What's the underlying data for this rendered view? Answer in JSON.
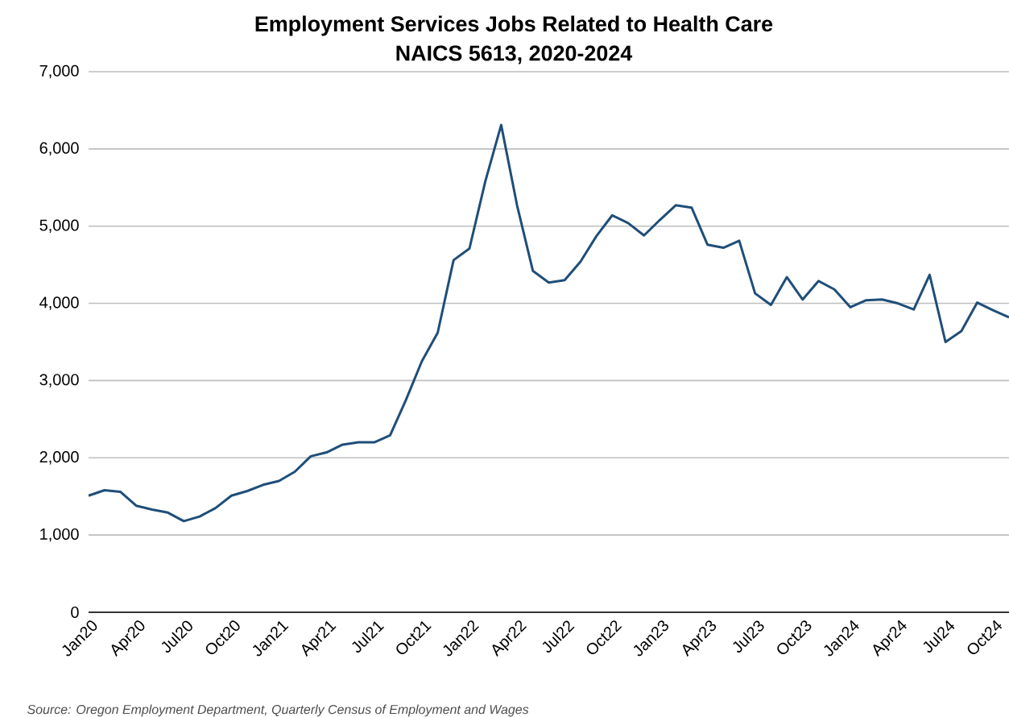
{
  "chart_data": {
    "type": "line",
    "title": "Employment Services Jobs Related to Health Care",
    "subtitle": "NAICS 5613, 2020-2024",
    "categories": [
      "Jan20",
      null,
      null,
      "Apr20",
      null,
      null,
      "Jul20",
      null,
      null,
      "Oct20",
      null,
      null,
      "Jan21",
      null,
      null,
      "Apr21",
      null,
      null,
      "Jul21",
      null,
      null,
      "Oct21",
      null,
      null,
      "Jan22",
      null,
      null,
      "Apr22",
      null,
      null,
      "Jul22",
      null,
      null,
      "Oct22",
      null,
      null,
      "Jan23",
      null,
      null,
      "Apr23",
      null,
      null,
      "Jul23",
      null,
      null,
      "Oct23",
      null,
      null,
      "Jan24",
      null,
      null,
      "Apr24",
      null,
      null,
      "Jul24",
      null,
      null,
      "Oct24",
      null
    ],
    "values": [
      1510,
      1580,
      1560,
      1380,
      1330,
      1290,
      1180,
      1240,
      1350,
      1510,
      1570,
      1650,
      1700,
      1820,
      2020,
      2070,
      2170,
      2200,
      2200,
      2290,
      2750,
      3250,
      3620,
      4560,
      4710,
      5580,
      6310,
      5270,
      4420,
      4270,
      4300,
      4540,
      4870,
      5140,
      5040,
      4880,
      5080,
      5270,
      5240,
      4760,
      4720,
      4810,
      4130,
      3980,
      4340,
      4050,
      4290,
      4180,
      3950,
      4040,
      4050,
      4000,
      3920,
      4370,
      3500,
      3640,
      4010,
      3910,
      3820
    ],
    "color": "#1f4e79",
    "ylim": [
      0,
      7000
    ],
    "yticks": [
      0,
      {
        "value": 1000,
        "label": "1,000"
      },
      {
        "value": 2000,
        "label": "2,000"
      },
      {
        "value": 3000,
        "label": "3,000"
      },
      {
        "value": 4000,
        "label": "4,000"
      },
      {
        "value": 5000,
        "label": "5,000"
      },
      {
        "value": 6000,
        "label": "6,000"
      },
      {
        "value": 7000,
        "label": "7,000"
      }
    ],
    "grid": "y",
    "annotations": [
      "Source: Oregon Employment Department, Quarterly Census of Employment and Wages"
    ]
  }
}
